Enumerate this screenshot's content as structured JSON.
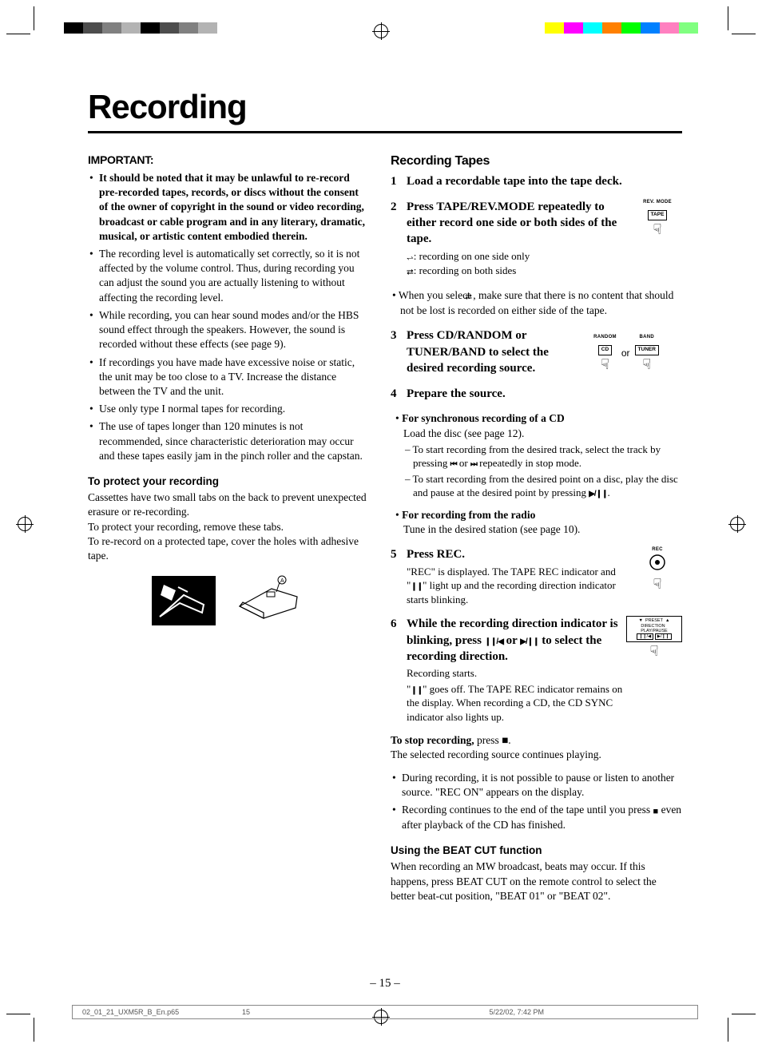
{
  "colorbar_left": [
    "#000000",
    "#4d4d4d",
    "#808080",
    "#b3b3b3",
    "#000000",
    "#4d4d4d",
    "#808080",
    "#b3b3b3"
  ],
  "colorbar_right": [
    "#ffff00",
    "#ff00ff",
    "#00ffff",
    "#ff8000",
    "#00ff00",
    "#0080ff",
    "#ff80c0",
    "#80ff80"
  ],
  "title": "Recording",
  "left": {
    "important_head": "IMPORTANT:",
    "b1_bold": "It should be noted that it may be unlawful to re-record pre-recorded tapes, records, or discs without the consent of the owner of copyright in the sound or video recording, broadcast or cable program and in any literary, dramatic, musical, or artistic content embodied therein.",
    "b2": "The recording level is automatically set correctly, so it is not affected by the volume control. Thus, during recording you can adjust the sound you are actually listening to without affecting the recording level.",
    "b3": "While recording, you can hear sound modes and/or the HBS sound effect through the speakers. However, the sound is recorded without these effects (see page 9).",
    "b4": "If recordings you have made have excessive noise or static, the unit may be too close to a TV. Increase the distance between the TV and the unit.",
    "b5": "Use only type I normal tapes for recording.",
    "b6": "The use of tapes longer than 120 minutes is not recommended, since characteristic deterioration may occur and these tapes easily jam in the pinch roller and the capstan.",
    "protect_head": "To protect your recording",
    "protect_p1": "Cassettes have two small tabs on the back to prevent unexpected erasure or re-recording.",
    "protect_p2": "To protect your recording, remove these tabs.",
    "protect_p3": "To re-record on a protected tape, cover the holes with adhesive tape."
  },
  "right": {
    "tapes_head": "Recording Tapes",
    "s1": "Load a recordable tape into the tape deck.",
    "s2_title": "Press TAPE/REV.MODE repeatedly to either record one side or both sides of the tape.",
    "s2_l1": ": recording on one side only",
    "s2_l2": ": recording on both sides",
    "s2_note": ", make sure that there is no content that should not be lost is recorded on either side of the tape.",
    "s2_note_pre": "When you select ",
    "s2_icon_top": "REV. MODE",
    "s2_icon_key": "TAPE",
    "s3_title": "Press CD/RANDOM or TUNER/BAND to select the desired recording source.",
    "s3_icon1_top": "RANDOM",
    "s3_icon1_key": "CD",
    "s3_or": "or",
    "s3_icon2_top": "BAND",
    "s3_icon2_key": "TUNER",
    "s4_title": "Prepare the source.",
    "s4_cd_head": "For synchronous recording of a CD",
    "s4_cd_l1": "Load the disc (see page 12).",
    "s4_cd_l2a": "To start recording from the desired track, select the track by pressing ",
    "s4_cd_l2b": " repeatedly in stop mode.",
    "s4_cd_l3a": "To start recording from the desired point on a disc, play the disc and pause at the desired point by pressing ",
    "s4_radio_head": "For recording from the radio",
    "s4_radio_l1": "Tune in the desired station (see page 10).",
    "s5_title": "Press REC.",
    "s5_text_a": "\"REC\" is displayed. The TAPE REC indicator and \"",
    "s5_text_b": "\" light up and the recording direction indicator starts blinking.",
    "s5_icon_top": "REC",
    "s6_title_a": "While the recording direction indicator is blinking, press ",
    "s6_title_b": " to select the recording direction.",
    "s6_l1": "Recording starts.",
    "s6_l2a": "\"",
    "s6_l2b": "\" goes off. The TAPE REC indicator remains on the display. When recording a CD, the CD SYNC indicator also lights up.",
    "s6_icon_top": "PRESET",
    "stop_bold": "To stop recording,",
    "stop_rest": " press ■.",
    "stop_l2": "The selected recording source continues playing.",
    "note1": "During recording, it is not possible to pause or listen to another source. \"REC ON\" appears on the display.",
    "note2a": "Recording continues to the end of the tape until you press ",
    "note2b": " even after playback of the CD has finished.",
    "beat_head": "Using the BEAT CUT function",
    "beat_p": "When recording an MW broadcast, beats may occur. If this happens, press BEAT CUT on the remote control to select the better beat-cut position, \"BEAT 01\" or \"BEAT 02\"."
  },
  "footer": {
    "file": "02_01_21_UXM5R_B_En.p65",
    "pg": "15",
    "date": "5/22/02, 7:42 PM"
  },
  "page_num": "– 15 –",
  "symbols": {
    "one_side": "⥋",
    "both_sides": "⮂",
    "prev": "⏮",
    "next": "⏭",
    "play_pause": "▶/❙❙",
    "pause": "❙❙",
    "stop": "■",
    "pause_back": "❙❙/◀",
    "play_p2": "▶/❙❙",
    "or_word": " or "
  }
}
